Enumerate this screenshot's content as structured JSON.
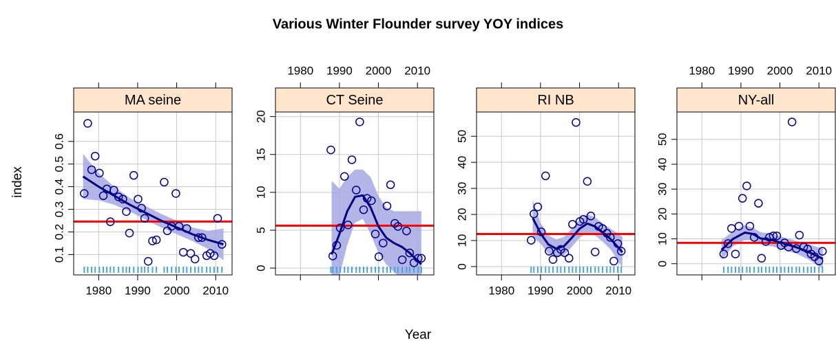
{
  "title": "Various Winter Flounder survey YOY indices",
  "x_label": "Year",
  "y_label": "index",
  "colors": {
    "points": "#00008b",
    "smooth": "#000080",
    "band": "#a4a8e0",
    "mean": "#ff0000",
    "rug": "#4aa3e0",
    "strip": "#ffe5cc",
    "grid": "#c8c8c8"
  },
  "chart_data": [
    {
      "type": "scatter",
      "strip": "MA seine",
      "xlim": [
        1973.6,
        2014.2
      ],
      "xticks": [
        1980,
        1990,
        2000,
        2010
      ],
      "xtick_side": "bottom",
      "ylim": [
        0.01,
        0.73
      ],
      "yticks": [
        0.1,
        0.2,
        0.3,
        0.4,
        0.5,
        0.6
      ],
      "grid": true,
      "mean": 0.246,
      "x": [
        1976.3,
        1977.2,
        1978.2,
        1979.1,
        1980.2,
        1981.2,
        1982.1,
        1983,
        1983.9,
        1985.1,
        1986.2,
        1987.1,
        1987.9,
        1989,
        1990.1,
        1991,
        1991.8,
        1992.7,
        1993.8,
        1994.8,
        1996.8,
        1997.6,
        1998.7,
        1999.8,
        2000.6,
        2001.7,
        2002.6,
        2003.6,
        2004.7,
        2005.6,
        2006.5,
        2007.7,
        2008.6,
        2009.6,
        2010.5,
        2011.6
      ],
      "y": [
        0.37,
        0.68,
        0.475,
        0.535,
        0.46,
        0.36,
        0.39,
        0.245,
        0.385,
        0.355,
        0.345,
        0.29,
        0.195,
        0.45,
        0.345,
        0.305,
        0.26,
        0.07,
        0.16,
        0.165,
        0.42,
        0.205,
        0.225,
        0.37,
        0.225,
        0.11,
        0.215,
        0.105,
        0.08,
        0.175,
        0.175,
        0.095,
        0.105,
        0.095,
        0.26,
        0.145
      ],
      "smooth": {
        "x": [
          1976,
          1980,
          1984,
          1988,
          1992,
          1996,
          2000,
          2004,
          2008,
          2012
        ],
        "y": [
          0.445,
          0.4,
          0.36,
          0.32,
          0.285,
          0.25,
          0.22,
          0.19,
          0.165,
          0.145
        ],
        "lower": [
          0.345,
          0.34,
          0.32,
          0.29,
          0.255,
          0.22,
          0.19,
          0.16,
          0.125,
          0.075
        ],
        "upper": [
          0.545,
          0.46,
          0.4,
          0.35,
          0.315,
          0.28,
          0.25,
          0.22,
          0.205,
          0.215
        ]
      }
    },
    {
      "type": "scatter",
      "strip": "CT Seine",
      "xlim": [
        1973.6,
        2014.2
      ],
      "xticks": [
        1980,
        1990,
        2000,
        2010
      ],
      "xtick_side": "top",
      "ylim": [
        -0.9,
        20.6
      ],
      "yticks": [
        0,
        5,
        10,
        15,
        20
      ],
      "grid": true,
      "mean": 5.6,
      "x": [
        1987.8,
        1988.3,
        1989.3,
        1990.2,
        1991.3,
        1992.2,
        1993.2,
        1994.3,
        1995.2,
        1996.2,
        1997.1,
        1998.2,
        1999.2,
        2000.1,
        2001.2,
        2002.2,
        2003.1,
        2004.2,
        2005,
        2006.1,
        2007.2,
        2008,
        2009.1,
        2010.2,
        2011
      ],
      "y": [
        15.6,
        1.6,
        3,
        5.3,
        12.1,
        5.7,
        14.3,
        10.3,
        19.3,
        7.7,
        9.2,
        8.9,
        4.5,
        1.5,
        3.3,
        8.2,
        11,
        5.9,
        5.5,
        1.1,
        4.9,
        2,
        0.7,
        1.3,
        1.3
      ],
      "smooth": {
        "x": [
          1988,
          1990,
          1992,
          1994,
          1996,
          1998,
          2000,
          2002,
          2004,
          2006,
          2008,
          2011
        ],
        "y": [
          1.8,
          4.5,
          7.5,
          9.4,
          9.6,
          8,
          5.5,
          4,
          3.3,
          2.8,
          2,
          0.5
        ],
        "lower": [
          -7,
          -1,
          3,
          6,
          6.5,
          4.5,
          2,
          0.5,
          -0.5,
          -1.5,
          -3,
          -6
        ],
        "upper": [
          11.5,
          10.5,
          12,
          13,
          13,
          12,
          9.5,
          8,
          7.5,
          7.5,
          7.5,
          7.5
        ]
      }
    },
    {
      "type": "scatter",
      "strip": "RI NB",
      "xlim": [
        1973.6,
        2014.2
      ],
      "xticks": [
        1980,
        1990,
        2000,
        2010
      ],
      "xtick_side": "bottom",
      "ylim": [
        -3.2,
        59.3
      ],
      "yticks": [
        0,
        10,
        20,
        30,
        40,
        50
      ],
      "grid": true,
      "mean": 12.5,
      "x": [
        1987.6,
        1988.3,
        1989.3,
        1990.2,
        1991.3,
        1992.2,
        1993.2,
        1994.3,
        1995.2,
        1996.2,
        1997.3,
        1998.2,
        1999.1,
        2000.1,
        2001,
        2002,
        2002.9,
        2004,
        2004.9,
        2005.9,
        2007,
        2007.9,
        2008.8,
        2009.8,
        2010.7
      ],
      "y": [
        10.1,
        20.2,
        22.9,
        13.3,
        34.8,
        5.9,
        2.7,
        5.3,
        6.6,
        5.3,
        3.2,
        16.2,
        55.3,
        17.3,
        18.1,
        32.7,
        19.4,
        5.6,
        15.4,
        14.6,
        12.8,
        11.2,
        2.1,
        8.8,
        5.9
      ],
      "smooth": {
        "x": [
          1988,
          1990,
          1992,
          1994,
          1996,
          1998,
          2000,
          2002,
          2004,
          2006,
          2008,
          2011
        ],
        "y": [
          18.6,
          12.8,
          8.5,
          6.9,
          7.8,
          11,
          14.5,
          16.5,
          15.4,
          13,
          10.5,
          5.5
        ],
        "lower": [
          11.6,
          8.8,
          5,
          3.4,
          4.3,
          7.5,
          11,
          13,
          11.9,
          9.5,
          6.5,
          -0.5
        ],
        "upper": [
          25.6,
          16.8,
          12,
          10.4,
          11.3,
          14.5,
          18,
          20,
          18.9,
          16.5,
          14.5,
          11.5
        ]
      }
    },
    {
      "type": "scatter",
      "strip": "NY-all",
      "xlim": [
        1973.6,
        2014.2
      ],
      "xticks": [
        1980,
        1990,
        2000,
        2010
      ],
      "xtick_side": "top",
      "ylim": [
        -4.5,
        61
      ],
      "yticks": [
        0,
        10,
        20,
        30,
        40,
        50
      ],
      "grid": true,
      "mean": 8.4,
      "x": [
        1985.6,
        1986.7,
        1987.6,
        1988.6,
        1989.5,
        1990.4,
        1991.5,
        1992.3,
        1993.4,
        1994.5,
        1995.3,
        1996.4,
        1997.3,
        1998.3,
        1999.2,
        2000.3,
        2001.2,
        2002.2,
        2003.1,
        2004.2,
        2005,
        2006.1,
        2007.1,
        2008,
        2008.9,
        2010,
        2010.9
      ],
      "y": [
        3.9,
        8.1,
        14.2,
        3.9,
        15.1,
        26.3,
        31.3,
        15.1,
        10.6,
        24.3,
        2.2,
        8.9,
        10.6,
        11.2,
        11.2,
        7.3,
        8.4,
        6.7,
        57,
        6.1,
        11.5,
        6.7,
        5.9,
        3.9,
        2.8,
        1.1,
        5
      ],
      "smooth": {
        "x": [
          1985,
          1988,
          1991,
          1993,
          1995,
          1998,
          2001,
          2004,
          2007,
          2011
        ],
        "y": [
          5.5,
          10,
          12.5,
          12,
          10.2,
          9.5,
          8.1,
          6.7,
          5,
          2
        ],
        "lower": [
          1.5,
          7,
          9.5,
          9.5,
          7.7,
          7,
          5.6,
          4.2,
          2,
          -2
        ],
        "upper": [
          9.5,
          13,
          15.5,
          14.5,
          12.7,
          12,
          10.6,
          9.2,
          8,
          6
        ]
      }
    }
  ]
}
